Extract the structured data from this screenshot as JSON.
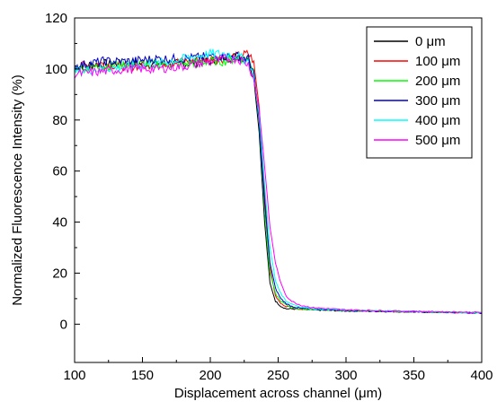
{
  "chart_data": {
    "type": "line",
    "title": "",
    "xlabel": "Displacement across channel (μm)",
    "ylabel": "Normalized Fluorescence Intensity (%)",
    "xlim": [
      100,
      400
    ],
    "ylim": [
      -15,
      120
    ],
    "x_ticks": [
      "100",
      "150",
      "200",
      "250",
      "300",
      "350",
      "400"
    ],
    "y_ticks": [
      "0",
      "20",
      "40",
      "60",
      "80",
      "100",
      "120"
    ],
    "legend_position": "top-right",
    "grid": false,
    "series": [
      {
        "name": "0 μm",
        "color": "#000000",
        "x": [
          100,
          120,
          140,
          160,
          180,
          200,
          210,
          220,
          228,
          232,
          236,
          240,
          244,
          248,
          252,
          256,
          260,
          266,
          275,
          300,
          350,
          400
        ],
        "y": [
          101,
          102,
          102,
          102,
          102,
          103,
          104,
          105,
          104,
          97,
          75,
          40,
          16,
          9,
          7,
          6,
          6,
          5.8,
          5.6,
          5.2,
          4.8,
          4.4
        ]
      },
      {
        "name": "100 μm",
        "color": "#ff0000",
        "x": [
          100,
          120,
          140,
          160,
          180,
          200,
          210,
          220,
          228,
          232,
          236,
          240,
          244,
          248,
          252,
          256,
          260,
          266,
          275,
          300,
          350,
          400
        ],
        "y": [
          101,
          102,
          101,
          102,
          103,
          104,
          104,
          105,
          106,
          103,
          85,
          52,
          22,
          11,
          8,
          7,
          6.5,
          6,
          5.8,
          5.3,
          4.9,
          4.4
        ]
      },
      {
        "name": "200 μm",
        "color": "#00ff00",
        "x": [
          100,
          120,
          140,
          160,
          180,
          200,
          210,
          220,
          228,
          232,
          236,
          240,
          244,
          248,
          252,
          256,
          260,
          266,
          275,
          300,
          350,
          400
        ],
        "y": [
          100,
          101,
          102,
          102,
          102,
          103,
          103,
          104,
          104,
          100,
          80,
          45,
          20,
          12,
          9,
          7.5,
          6.5,
          6,
          5.8,
          5.3,
          4.9,
          4.4
        ]
      },
      {
        "name": "300 μm",
        "color": "#0000cc",
        "x": [
          100,
          120,
          140,
          160,
          180,
          200,
          210,
          220,
          228,
          232,
          236,
          240,
          244,
          248,
          252,
          256,
          260,
          266,
          275,
          300,
          350,
          400
        ],
        "y": [
          101,
          103,
          103,
          104,
          104,
          105,
          105,
          105,
          104,
          99,
          80,
          48,
          24,
          14,
          10,
          8,
          7,
          6.3,
          5.9,
          5.4,
          4.9,
          4.4
        ]
      },
      {
        "name": "400 μm",
        "color": "#00ffff",
        "x": [
          100,
          120,
          140,
          160,
          180,
          200,
          210,
          220,
          228,
          232,
          236,
          240,
          244,
          248,
          252,
          256,
          260,
          266,
          275,
          300,
          350,
          400
        ],
        "y": [
          99,
          100,
          101,
          102,
          104,
          106,
          106,
          105,
          103,
          97,
          82,
          55,
          30,
          17,
          12,
          9,
          8,
          6.8,
          6.1,
          5.5,
          5,
          4.5
        ]
      },
      {
        "name": "500 μm",
        "color": "#ff00ff",
        "x": [
          100,
          120,
          140,
          160,
          180,
          200,
          210,
          220,
          228,
          232,
          236,
          240,
          244,
          248,
          252,
          256,
          260,
          266,
          275,
          300,
          350,
          400
        ],
        "y": [
          98,
          99,
          100,
          100,
          101,
          103,
          104,
          104,
          102,
          96,
          84,
          62,
          38,
          24,
          16,
          11,
          9,
          7.5,
          6.5,
          5.6,
          5,
          4.6
        ]
      }
    ]
  }
}
